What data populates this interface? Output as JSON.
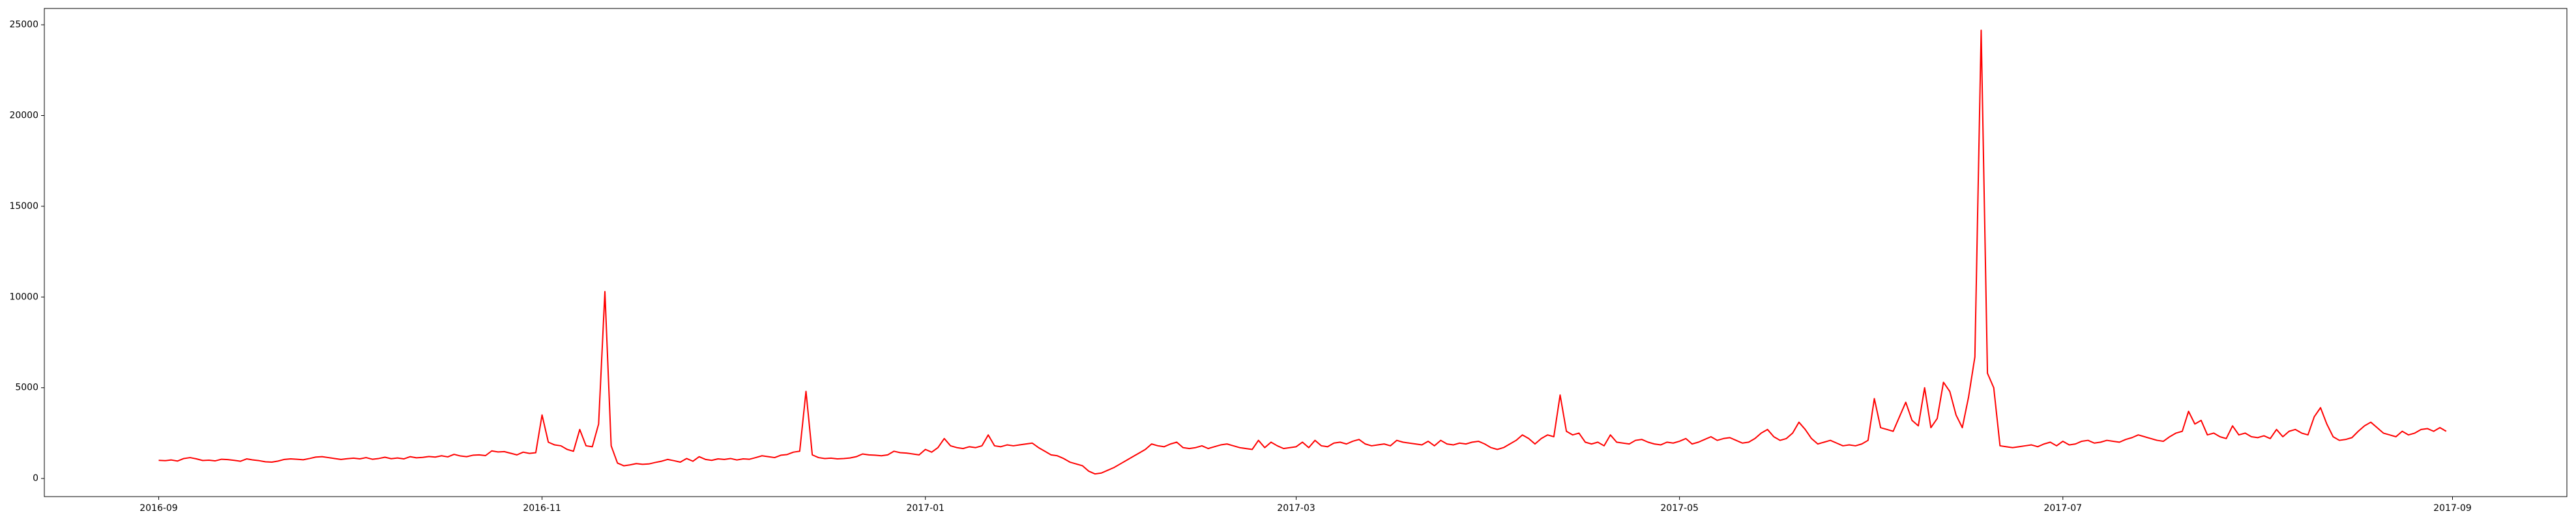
{
  "chart_data": {
    "type": "line",
    "color": "#ff0000",
    "values": [
      1000,
      980,
      1020,
      960,
      1100,
      1150,
      1080,
      990,
      1010,
      970,
      1060,
      1040,
      1000,
      950,
      1080,
      1020,
      980,
      920,
      900,
      960,
      1050,
      1080,
      1060,
      1030,
      1100,
      1180,
      1200,
      1150,
      1100,
      1050,
      1090,
      1120,
      1080,
      1150,
      1060,
      1100,
      1170,
      1090,
      1130,
      1080,
      1200,
      1140,
      1160,
      1210,
      1180,
      1250,
      1190,
      1330,
      1240,
      1200,
      1280,
      1300,
      1260,
      1520,
      1460,
      1480,
      1390,
      1300,
      1450,
      1380,
      1420,
      3500,
      2000,
      1850,
      1800,
      1600,
      1500,
      2700,
      1800,
      1750,
      3000,
      10300,
      1800,
      850,
      700,
      750,
      820,
      780,
      800,
      880,
      950,
      1050,
      980,
      900,
      1100,
      950,
      1200,
      1050,
      1000,
      1080,
      1050,
      1100,
      1020,
      1080,
      1060,
      1150,
      1250,
      1200,
      1150,
      1280,
      1320,
      1450,
      1500,
      4800,
      1300,
      1150,
      1100,
      1120,
      1080,
      1100,
      1130,
      1200,
      1350,
      1300,
      1280,
      1250,
      1300,
      1500,
      1420,
      1400,
      1350,
      1300,
      1600,
      1450,
      1700,
      2200,
      1800,
      1700,
      1650,
      1750,
      1700,
      1800,
      2400,
      1800,
      1750,
      1850,
      1800,
      1850,
      1900,
      1950,
      1700,
      1500,
      1300,
      1250,
      1100,
      900,
      800,
      700,
      400,
      250,
      300,
      450,
      600,
      800,
      1000,
      1200,
      1400,
      1600,
      1900,
      1800,
      1750,
      1900,
      2000,
      1700,
      1650,
      1700,
      1800,
      1650,
      1750,
      1850,
      1900,
      1800,
      1700,
      1650,
      1600,
      2100,
      1700,
      2000,
      1800,
      1650,
      1700,
      1750,
      2000,
      1700,
      2100,
      1800,
      1750,
      1950,
      2000,
      1900,
      2050,
      2150,
      1900,
      1800,
      1850,
      1900,
      1800,
      2100,
      2000,
      1950,
      1900,
      1850,
      2050,
      1800,
      2100,
      1900,
      1850,
      1950,
      1900,
      2000,
      2050,
      1900,
      1700,
      1600,
      1700,
      1900,
      2100,
      2400,
      2200,
      1900,
      2200,
      2400,
      2300,
      4600,
      2600,
      2400,
      2500,
      2000,
      1900,
      2000,
      1800,
      2400,
      2000,
      1950,
      1900,
      2100,
      2150,
      2000,
      1900,
      1850,
      2000,
      1950,
      2050,
      2200,
      1900,
      2000,
      2150,
      2300,
      2100,
      2200,
      2250,
      2100,
      1950,
      2000,
      2200,
      2500,
      2700,
      2300,
      2100,
      2200,
      2500,
      3100,
      2700,
      2200,
      1900,
      2000,
      2100,
      1950,
      1800,
      1850,
      1800,
      1900,
      2100,
      4400,
      2800,
      2700,
      2600,
      3400,
      4200,
      3200,
      2900,
      5000,
      2800,
      3300,
      5300,
      4800,
      3500,
      2800,
      4500,
      6700,
      24700,
      5800,
      5000,
      1800,
      1750,
      1700,
      1750,
      1800,
      1850,
      1750,
      1900,
      2000,
      1800,
      2050,
      1850,
      1900,
      2050,
      2100,
      1950,
      2000,
      2100,
      2050,
      2000,
      2150,
      2250,
      2400,
      2300,
      2200,
      2100,
      2050,
      2300,
      2500,
      2600,
      3700,
      3000,
      3200,
      2400,
      2500,
      2300,
      2200,
      2900,
      2400,
      2500,
      2300,
      2250,
      2350,
      2200,
      2700,
      2300,
      2600,
      2700,
      2500,
      2400,
      3400,
      3900,
      3000,
      2300,
      2100,
      2150,
      2250,
      2600,
      2900,
      3100,
      2800,
      2500,
      2400,
      2300,
      2600,
      2400,
      2500,
      2700,
      2750,
      2600,
      2800,
      2600
    ],
    "xlim": [
      -18.2,
      383.2
    ],
    "xticks": [
      {
        "value": 0,
        "label": "2016-09"
      },
      {
        "value": 61,
        "label": "2016-11"
      },
      {
        "value": 122,
        "label": "2017-01"
      },
      {
        "value": 181,
        "label": "2017-03"
      },
      {
        "value": 242,
        "label": "2017-05"
      },
      {
        "value": 303,
        "label": "2017-07"
      },
      {
        "value": 365,
        "label": "2017-09"
      }
    ],
    "ylim": [
      -1000,
      25900
    ],
    "yticks": [
      0,
      5000,
      10000,
      15000,
      20000,
      25000
    ]
  }
}
